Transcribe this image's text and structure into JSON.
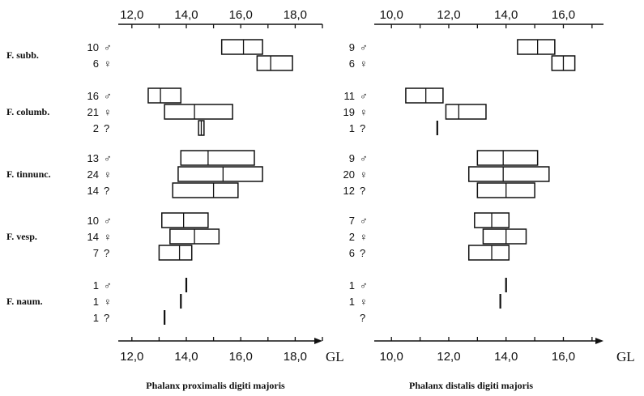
{
  "chart_data": {
    "type": "range-box",
    "groups": [
      {
        "name": "F. subb."
      },
      {
        "name": "F. columb."
      },
      {
        "name": "F. tinnunc."
      },
      {
        "name": "F. vesp."
      },
      {
        "name": "F. naum."
      }
    ],
    "panels": [
      {
        "id": "proximal",
        "title": "Phalanx proximalis digiti majoris",
        "unit": "GL",
        "xlim": [
          11.5,
          19.0
        ],
        "ticks": [
          12.0,
          14.0,
          16.0,
          18.0
        ],
        "tick_labels_top": [
          "12,0",
          "14,0",
          "16,0",
          "18,0"
        ],
        "tick_labels_bottom": [
          "12,0",
          "14,0",
          "16,0",
          "18,0"
        ],
        "rows": [
          {
            "group": 0,
            "count": "10",
            "sex": "♂",
            "min": 15.3,
            "mean": 16.1,
            "max": 16.8
          },
          {
            "group": 0,
            "count": "6",
            "sex": "♀",
            "min": 16.6,
            "mean": 17.1,
            "max": 17.9
          },
          {
            "group": 1,
            "count": "16",
            "sex": "♂",
            "min": 12.6,
            "mean": 13.05,
            "max": 13.8
          },
          {
            "group": 1,
            "count": "21",
            "sex": "♀",
            "min": 13.2,
            "mean": 14.3,
            "max": 15.7
          },
          {
            "group": 1,
            "count": "2",
            "sex": "?",
            "min": 14.45,
            "mean": 14.55,
            "max": 14.65,
            "style": "double-line"
          },
          {
            "group": 2,
            "count": "13",
            "sex": "♂",
            "min": 13.8,
            "mean": 14.8,
            "max": 16.5
          },
          {
            "group": 2,
            "count": "24",
            "sex": "♀",
            "min": 13.7,
            "mean": 15.35,
            "max": 16.8
          },
          {
            "group": 2,
            "count": "14",
            "sex": "?",
            "min": 13.5,
            "mean": 15.0,
            "max": 15.9
          },
          {
            "group": 3,
            "count": "10",
            "sex": "♂",
            "min": 13.1,
            "mean": 13.9,
            "max": 14.8
          },
          {
            "group": 3,
            "count": "14",
            "sex": "♀",
            "min": 13.4,
            "mean": 14.3,
            "max": 15.2
          },
          {
            "group": 3,
            "count": "7",
            "sex": "?",
            "min": 13.0,
            "mean": 13.75,
            "max": 14.2
          },
          {
            "group": 4,
            "count": "1",
            "sex": "♂",
            "value": 14.0
          },
          {
            "group": 4,
            "count": "1",
            "sex": "♀",
            "value": 13.8
          },
          {
            "group": 4,
            "count": "1",
            "sex": "?",
            "value": 13.2
          }
        ]
      },
      {
        "id": "distal",
        "title": "Phalanx distalis digiti majoris",
        "unit": "GL",
        "xlim": [
          9.4,
          17.4
        ],
        "ticks": [
          10.0,
          12.0,
          14.0,
          16.0
        ],
        "tick_labels_top": [
          "10,0",
          "12,0",
          "14,0",
          "16,0"
        ],
        "tick_labels_bottom": [
          "10,0",
          "12,0",
          "14,0",
          "16,0"
        ],
        "rows": [
          {
            "group": 0,
            "count": "9",
            "sex": "♂",
            "min": 14.4,
            "mean": 15.1,
            "max": 15.7
          },
          {
            "group": 0,
            "count": "6",
            "sex": "♀",
            "min": 15.6,
            "mean": 16.0,
            "max": 16.4
          },
          {
            "group": 1,
            "count": "11",
            "sex": "♂",
            "min": 10.5,
            "mean": 11.2,
            "max": 11.8
          },
          {
            "group": 1,
            "count": "19",
            "sex": "♀",
            "min": 11.9,
            "mean": 12.35,
            "max": 13.3
          },
          {
            "group": 1,
            "count": "1",
            "sex": "?",
            "value": 11.6
          },
          {
            "group": 2,
            "count": "9",
            "sex": "♂",
            "min": 13.0,
            "mean": 13.9,
            "max": 15.1
          },
          {
            "group": 2,
            "count": "20",
            "sex": "♀",
            "min": 12.7,
            "mean": 13.9,
            "max": 15.5
          },
          {
            "group": 2,
            "count": "12",
            "sex": "?",
            "min": 13.0,
            "mean": 14.0,
            "max": 15.0
          },
          {
            "group": 3,
            "count": "7",
            "sex": "♂",
            "min": 12.9,
            "mean": 13.5,
            "max": 14.1
          },
          {
            "group": 3,
            "count": "2",
            "sex": "♀",
            "min": 13.2,
            "mean": 14.0,
            "max": 14.7
          },
          {
            "group": 3,
            "count": "6",
            "sex": "?",
            "min": 12.7,
            "mean": 13.5,
            "max": 14.1
          },
          {
            "group": 4,
            "count": "1",
            "sex": "♂",
            "value": 14.0
          },
          {
            "group": 4,
            "count": "1",
            "sex": "♀",
            "value": 13.8
          },
          {
            "group": 4,
            "count": "",
            "sex": "?"
          }
        ]
      }
    ]
  }
}
